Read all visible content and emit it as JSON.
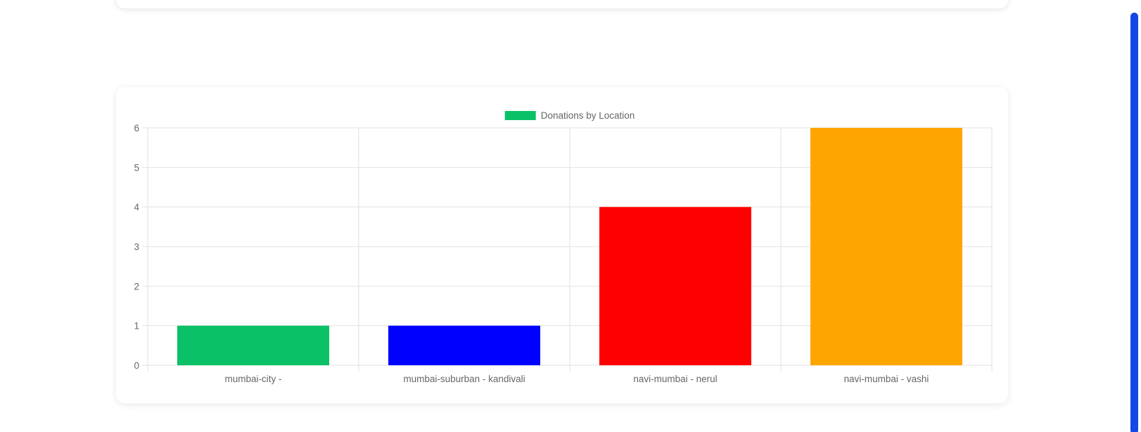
{
  "colors": {
    "grid": "#e2e2e2",
    "axis_text": "#666666",
    "scrollbar": "#1447e6"
  },
  "chart_data": {
    "type": "bar",
    "title": "",
    "xlabel": "",
    "ylabel": "",
    "legend_position": "top-center",
    "grid": true,
    "categories": [
      "mumbai-city -",
      "mumbai-suburban - kandivali",
      "navi-mumbai - nerul",
      "navi-mumbai - vashi"
    ],
    "series": [
      {
        "name": "Donations by Location",
        "values": [
          1,
          1,
          4,
          6
        ],
        "colors": [
          "#0ac167",
          "#0000ff",
          "#ff0000",
          "#ffa500"
        ],
        "legend_color": "#0ac167"
      }
    ],
    "ylim": [
      0,
      6
    ],
    "yticks": [
      0,
      1,
      2,
      3,
      4,
      5,
      6
    ]
  }
}
